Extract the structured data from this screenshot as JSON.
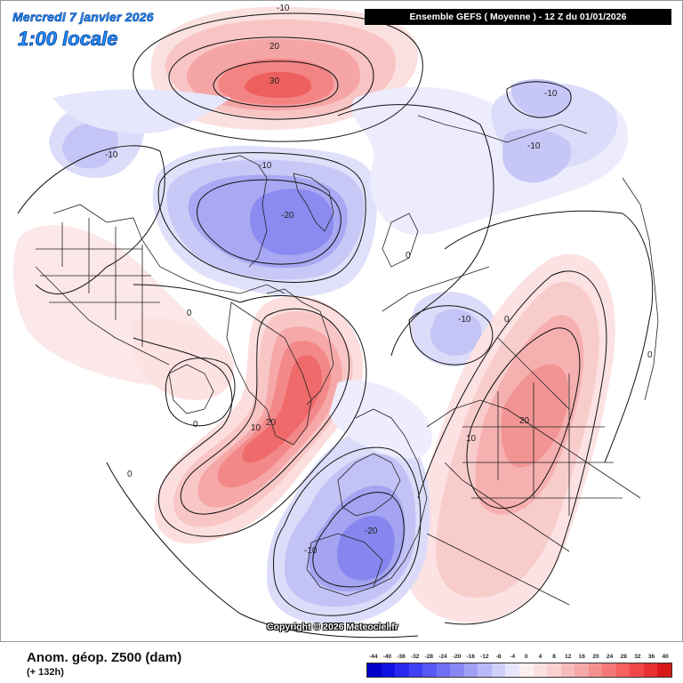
{
  "header": {
    "date_line": "Mercredi 7 janvier 2026",
    "time_line": "1:00 locale",
    "run_info": "Ensemble GEFS  ( Moyenne )  -  12 Z du 01/01/2026"
  },
  "map": {
    "copyright": "Copyright © 2026 Meteociel.fr",
    "contour_labels": [
      {
        "id": "pacific-high",
        "text": "30"
      },
      {
        "id": "pacific-high-ring",
        "text": "20"
      },
      {
        "id": "pacific-top",
        "text": "-10"
      },
      {
        "id": "alaska-west",
        "text": "-10"
      },
      {
        "id": "siberia-ring",
        "text": "-10"
      },
      {
        "id": "siberia-low",
        "text": "-20"
      },
      {
        "id": "kara-low",
        "text": "-10"
      },
      {
        "id": "urals-low-a",
        "text": "-10"
      },
      {
        "id": "urals-low-b",
        "text": "-10"
      },
      {
        "id": "arctic-zero",
        "text": "0"
      },
      {
        "id": "canada-zero",
        "text": "0"
      },
      {
        "id": "greenland-zero",
        "text": "0"
      },
      {
        "id": "russia-zero",
        "text": "0"
      },
      {
        "id": "asia-zero",
        "text": "0"
      },
      {
        "id": "atlantic-zero",
        "text": "0"
      },
      {
        "id": "greenland-ten",
        "text": "10"
      },
      {
        "id": "greenland-twenty",
        "text": "20"
      },
      {
        "id": "asia-ten",
        "text": "10"
      },
      {
        "id": "asia-high",
        "text": "20"
      },
      {
        "id": "europe-low",
        "text": "-20"
      },
      {
        "id": "europe-ring",
        "text": "-10"
      }
    ]
  },
  "footer": {
    "field_label": "Anom. géop. Z500 (dam)",
    "lead_time": "(+ 132h)"
  },
  "legend": {
    "ticks": [
      "-44",
      "-40",
      "-36",
      "-32",
      "-28",
      "-24",
      "-20",
      "-16",
      "-12",
      "-8",
      "-4",
      "0",
      "4",
      "8",
      "12",
      "16",
      "20",
      "24",
      "28",
      "32",
      "36",
      "40"
    ],
    "colors": [
      "#0000c8",
      "#1010e0",
      "#2828f0",
      "#4040f5",
      "#5858f5",
      "#7070f5",
      "#8888f5",
      "#a0a0f5",
      "#b8b8f8",
      "#d0d0fa",
      "#e6e6fc",
      "#fff0f0",
      "#fce0e0",
      "#fad0d0",
      "#f8bcbc",
      "#f5a8a8",
      "#f59090",
      "#f57878",
      "#f56060",
      "#f04848",
      "#e83030",
      "#d81818"
    ]
  }
}
